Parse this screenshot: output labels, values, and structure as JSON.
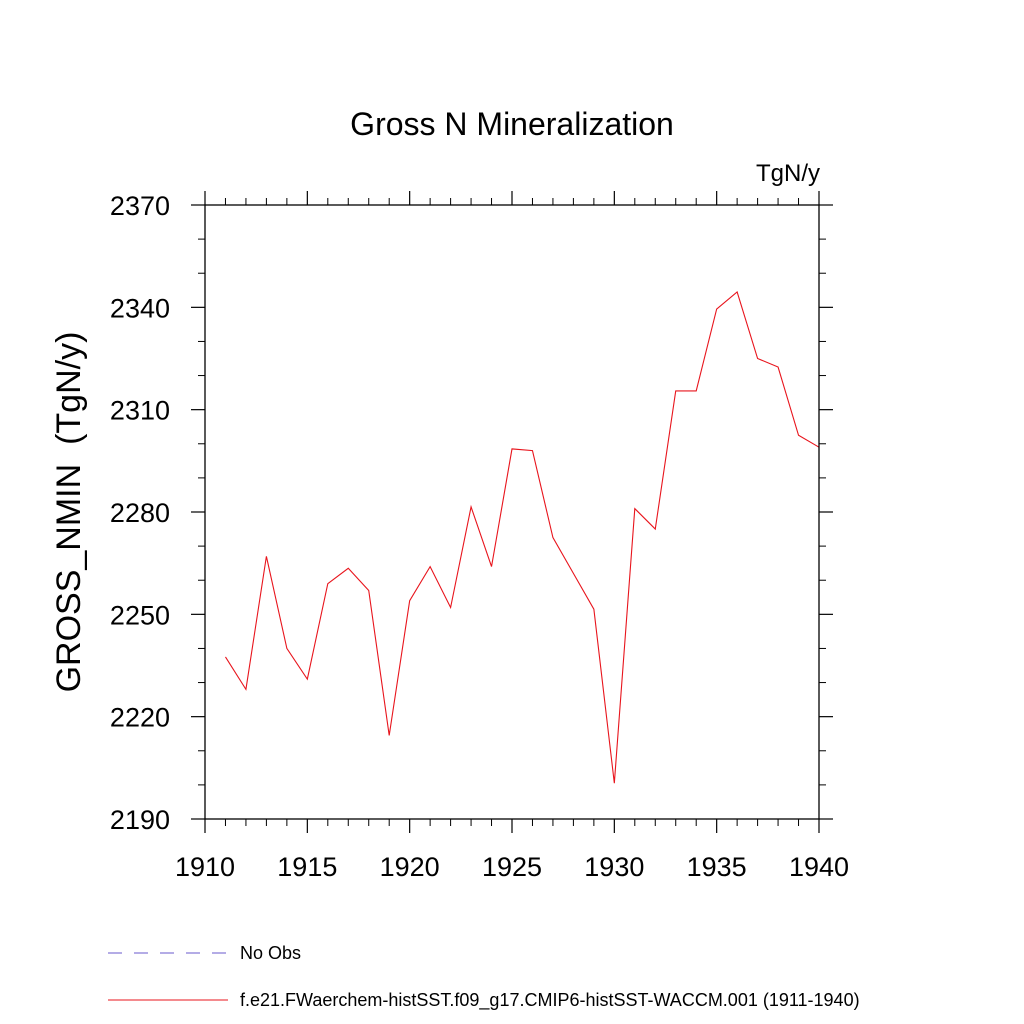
{
  "chart_data": {
    "type": "line",
    "title": "Gross N Mineralization",
    "units_label": "TgN/y",
    "ylabel": "GROSS_NMIN  (TgN/y)",
    "xlabel": "",
    "xlim": [
      1910,
      1940
    ],
    "ylim": [
      2190,
      2370
    ],
    "x_ticks": [
      1910,
      1915,
      1920,
      1925,
      1930,
      1935,
      1940
    ],
    "y_ticks": [
      2190,
      2220,
      2250,
      2280,
      2310,
      2340,
      2370
    ],
    "x_tick_labels": [
      "1910",
      "1915",
      "1920",
      "1925",
      "1930",
      "1935",
      "1940"
    ],
    "y_tick_labels": [
      "2190",
      "2220",
      "2250",
      "2280",
      "2310",
      "2340",
      "2370"
    ],
    "grid": false,
    "legend_position": "bottom",
    "series": [
      {
        "name": "f.e21.FWaerchem-histSST.f09_g17.CMIP6-histSST-WACCM.001 (1911-1940)",
        "color": "#e8141c",
        "style": "solid",
        "x": [
          1911,
          1912,
          1913,
          1914,
          1915,
          1916,
          1917,
          1918,
          1919,
          1920,
          1921,
          1922,
          1923,
          1924,
          1925,
          1926,
          1927,
          1928,
          1929,
          1930,
          1931,
          1932,
          1933,
          1934,
          1935,
          1936,
          1937,
          1938,
          1939,
          1940
        ],
        "values": [
          2237.5,
          2228,
          2267,
          2240,
          2231,
          2259,
          2263.5,
          2257,
          2214.5,
          2254,
          2264,
          2252,
          2281.5,
          2264,
          2298.5,
          2298,
          2272.5,
          2262,
          2251.5,
          2200.5,
          2281,
          2275,
          2315.5,
          2315.5,
          2339.5,
          2344.5,
          2325,
          2322.5,
          2302.5,
          2299
        ]
      }
    ],
    "legend": [
      {
        "label": "No Obs",
        "color": "#6a5acd",
        "style": "dashed"
      },
      {
        "label": "f.e21.FWaerchem-histSST.f09_g17.CMIP6-histSST-WACCM.001 (1911-1940)",
        "color": "#e8141c",
        "style": "solid"
      }
    ]
  }
}
